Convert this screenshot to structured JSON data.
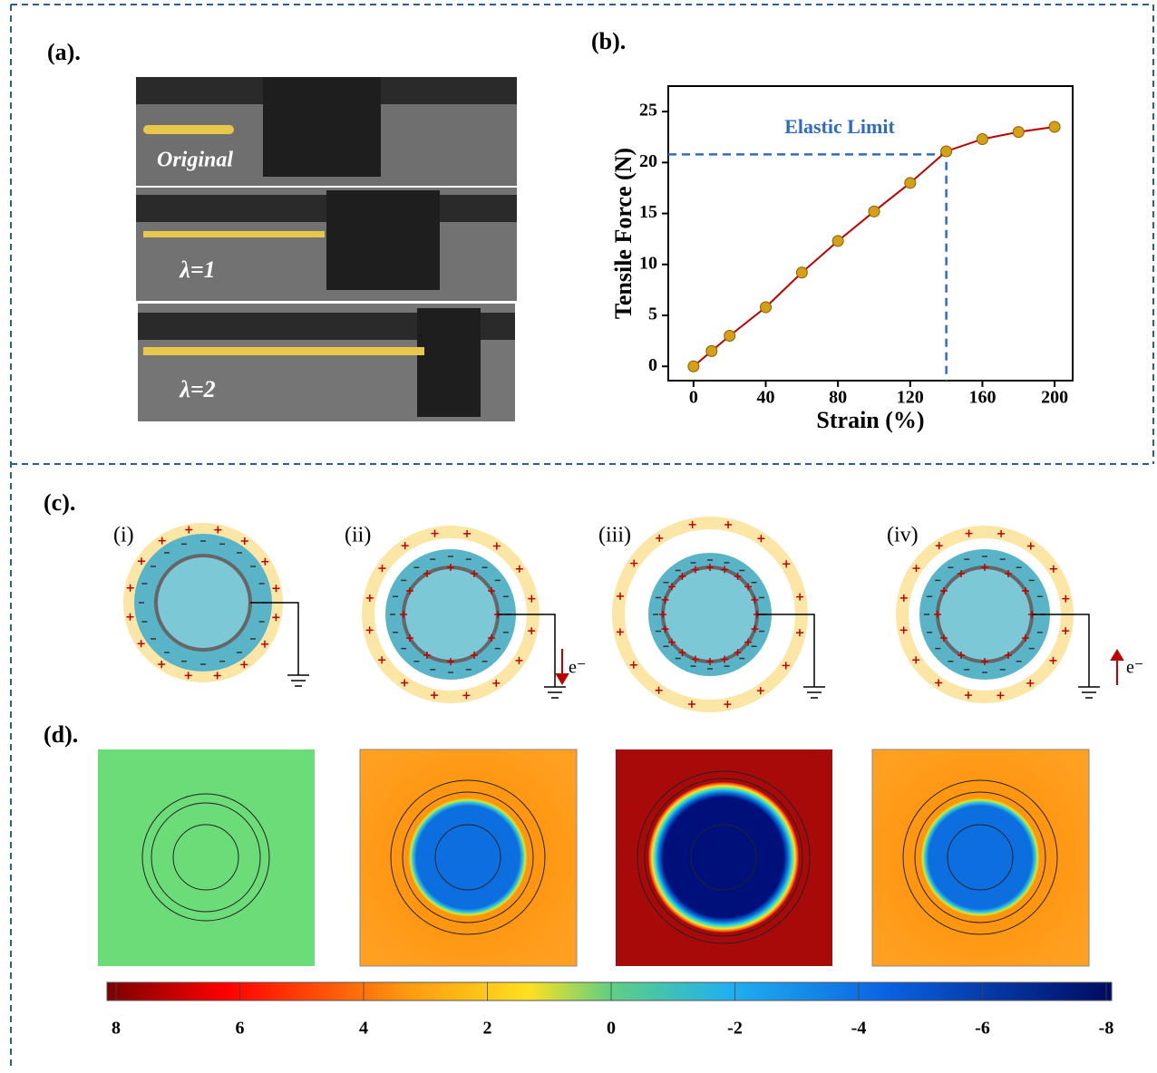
{
  "panels": {
    "a": {
      "label": "(a).",
      "photo_labels": [
        "Original",
        "λ=1",
        "λ=2"
      ]
    },
    "b": {
      "label": "(b)."
    },
    "c": {
      "label": "(c).",
      "stages": [
        "(i)",
        "(ii)",
        "(iii)",
        "(iv)"
      ],
      "electron": "e⁻"
    },
    "d": {
      "label": "(d).",
      "colorbar": {
        "lim": [
          8,
          -8
        ],
        "ticks": [
          8,
          6,
          4,
          2,
          0,
          -2,
          -4,
          -6,
          -8
        ]
      }
    }
  },
  "chart_data": {
    "type": "line",
    "xlabel": "Strain (%)",
    "ylabel": "Tensile Force (N)",
    "x": [
      0,
      10,
      20,
      40,
      60,
      80,
      100,
      120,
      140,
      160,
      180,
      200
    ],
    "values": [
      0,
      1.5,
      3,
      5.8,
      9.2,
      12.3,
      15.2,
      18,
      21.1,
      22.3,
      23,
      23.5
    ],
    "line_color": "#c00000",
    "marker_color": "#d4a017",
    "xlim": [
      -14,
      210
    ],
    "ylim": [
      -1.4,
      27.5
    ],
    "xticks": [
      0,
      40,
      80,
      120,
      160,
      200
    ],
    "yticks": [
      0,
      5,
      10,
      15,
      20,
      25
    ],
    "annotation": {
      "text": "Elastic Limit",
      "x": 140,
      "y": 20.8,
      "color": "#2e6cc4"
    }
  }
}
